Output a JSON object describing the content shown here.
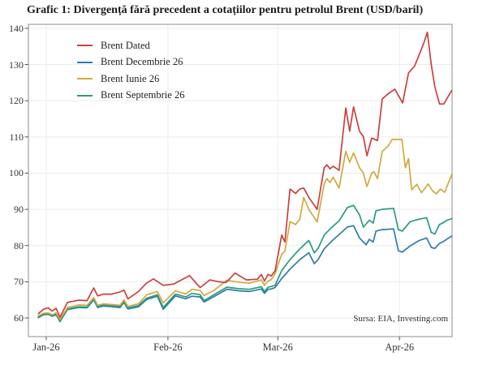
{
  "title": "Grafic 1: Divergență fără precedent a cotațiilor pentru petrolul Brent (USD/baril)",
  "source_note": "Sursa: EIA, Investing.com",
  "colors": {
    "background": "#ffffff",
    "plot_border": "#a8a8a8",
    "gridline": "#ececec",
    "tick": "#555555",
    "text": "#333333",
    "title_text": "#1a1a1a"
  },
  "chart_data": {
    "type": "line",
    "title": "Grafic 1: Divergență fără precedent a cotațiilor pentru petrolul Brent (USD/baril)",
    "xlabel": "",
    "ylabel": "",
    "grid": true,
    "legend_position": "top-left",
    "annotation": "Sursa: EIA, Investing.com",
    "x_axis": {
      "unit": "days since Jan 1 2026",
      "domain_days": [
        -4.55,
        103.4
      ],
      "tick_days": [
        0,
        31,
        59,
        90
      ],
      "tick_labels": [
        "Jan-26",
        "Feb-26",
        "Mar-26",
        "Apr-26"
      ]
    },
    "y_axis": {
      "unit": "USD/baril",
      "domain": [
        54.85,
        141.1
      ],
      "ticks": [
        60,
        70,
        80,
        90,
        100,
        110,
        120,
        130,
        140
      ]
    },
    "draw_order": [
      1,
      3,
      2,
      0
    ],
    "series": [
      {
        "name": "Brent Dated",
        "color": "#c9403f",
        "points": [
          [
            -2,
            61.2
          ],
          [
            -0.7,
            62.4
          ],
          [
            0.5,
            62.8
          ],
          [
            1.5,
            61.9
          ],
          [
            2.5,
            62.7
          ],
          [
            3.5,
            60.2
          ],
          [
            5.4,
            64.3
          ],
          [
            8.3,
            64.9
          ],
          [
            10.4,
            64.8
          ],
          [
            12.1,
            68.3
          ],
          [
            13.1,
            66.1
          ],
          [
            14.6,
            66.6
          ],
          [
            16.7,
            66.6
          ],
          [
            18.8,
            67.2
          ],
          [
            19.8,
            67.7
          ],
          [
            20.8,
            65.3
          ],
          [
            23.5,
            67.3
          ],
          [
            25.5,
            69.6
          ],
          [
            27.3,
            70.8
          ],
          [
            29.8,
            69.0
          ],
          [
            32.5,
            69.4
          ],
          [
            36.5,
            71.7
          ],
          [
            39.2,
            68.4
          ],
          [
            41.7,
            70.5
          ],
          [
            44.0,
            70.0
          ],
          [
            45.8,
            69.8
          ],
          [
            48.1,
            72.4
          ],
          [
            51.0,
            70.5
          ],
          [
            53.8,
            70.7
          ],
          [
            54.8,
            72.0
          ],
          [
            55.6,
            70.2
          ],
          [
            56.5,
            72.0
          ],
          [
            57.3,
            71.6
          ],
          [
            58.3,
            73.0
          ],
          [
            60.0,
            82.9
          ],
          [
            60.8,
            81.0
          ],
          [
            62.1,
            95.6
          ],
          [
            63.5,
            94.4
          ],
          [
            64.6,
            95.6
          ],
          [
            65.6,
            95.9
          ],
          [
            66.9,
            93.3
          ],
          [
            69.0,
            90.0
          ],
          [
            70.8,
            101.5
          ],
          [
            71.5,
            102.3
          ],
          [
            72.3,
            101.2
          ],
          [
            73.1,
            101.9
          ],
          [
            74.6,
            100.8
          ],
          [
            76.3,
            118.0
          ],
          [
            77.3,
            111.6
          ],
          [
            78.3,
            118.3
          ],
          [
            79.8,
            111.6
          ],
          [
            80.8,
            110.1
          ],
          [
            81.7,
            104.8
          ],
          [
            82.9,
            109.7
          ],
          [
            84.4,
            109.0
          ],
          [
            85.6,
            120.5
          ],
          [
            87.1,
            121.9
          ],
          [
            88.8,
            123.2
          ],
          [
            90.8,
            119.4
          ],
          [
            92.3,
            127.7
          ],
          [
            93.8,
            129.5
          ],
          [
            94.8,
            132.1
          ],
          [
            96.3,
            136.3
          ],
          [
            97.1,
            138.9
          ],
          [
            98.1,
            129.9
          ],
          [
            99.0,
            123.9
          ],
          [
            100.2,
            119.1
          ],
          [
            101.3,
            119.1
          ],
          [
            102.3,
            121.0
          ],
          [
            103.3,
            122.8
          ]
        ]
      },
      {
        "name": "Brent Decembrie 26",
        "color": "#2f7ca6",
        "points": [
          [
            -2,
            60.1
          ],
          [
            -0.7,
            60.9
          ],
          [
            0.5,
            61.0
          ],
          [
            1.5,
            60.5
          ],
          [
            2.5,
            60.9
          ],
          [
            3.5,
            59.0
          ],
          [
            5.4,
            62.3
          ],
          [
            8.3,
            62.9
          ],
          [
            10.4,
            62.8
          ],
          [
            12.1,
            65.0
          ],
          [
            13.1,
            62.9
          ],
          [
            14.6,
            63.3
          ],
          [
            16.7,
            63.1
          ],
          [
            18.8,
            62.9
          ],
          [
            19.8,
            64.3
          ],
          [
            20.8,
            62.5
          ],
          [
            23.5,
            63.1
          ],
          [
            25.6,
            65.1
          ],
          [
            28.3,
            66.0
          ],
          [
            29.8,
            62.4
          ],
          [
            32.9,
            66.1
          ],
          [
            35.6,
            65.3
          ],
          [
            37.1,
            66.0
          ],
          [
            39.2,
            65.8
          ],
          [
            40.2,
            64.4
          ],
          [
            42.7,
            65.9
          ],
          [
            46.0,
            67.9
          ],
          [
            49.0,
            67.5
          ],
          [
            51.7,
            67.3
          ],
          [
            54.8,
            68.0
          ],
          [
            55.6,
            66.8
          ],
          [
            56.5,
            67.9
          ],
          [
            57.3,
            68.0
          ],
          [
            58.3,
            68.4
          ],
          [
            60.0,
            70.9
          ],
          [
            62.1,
            73.5
          ],
          [
            64.6,
            76.1
          ],
          [
            66.9,
            78.0
          ],
          [
            68.3,
            75.0
          ],
          [
            69.3,
            76.2
          ],
          [
            70.8,
            79.1
          ],
          [
            72.5,
            81.0
          ],
          [
            74.6,
            83.0
          ],
          [
            76.7,
            85.1
          ],
          [
            78.3,
            85.5
          ],
          [
            79.8,
            82.1
          ],
          [
            81.5,
            80.2
          ],
          [
            82.3,
            81.7
          ],
          [
            83.3,
            81.0
          ],
          [
            84.0,
            84.0
          ],
          [
            85.6,
            84.4
          ],
          [
            88.5,
            84.6
          ],
          [
            89.7,
            78.6
          ],
          [
            90.7,
            78.2
          ],
          [
            92.7,
            79.9
          ],
          [
            95.0,
            81.4
          ],
          [
            96.9,
            82.1
          ],
          [
            98.1,
            79.5
          ],
          [
            99.0,
            79.2
          ],
          [
            100.2,
            80.6
          ],
          [
            101.3,
            81.2
          ],
          [
            102.1,
            81.8
          ],
          [
            103.3,
            82.6
          ]
        ]
      },
      {
        "name": "Brent Iunie 26",
        "color": "#d1a93d",
        "points": [
          [
            -2,
            60.6
          ],
          [
            -0.7,
            61.3
          ],
          [
            0.5,
            61.4
          ],
          [
            1.5,
            60.9
          ],
          [
            2.5,
            61.4
          ],
          [
            3.5,
            59.6
          ],
          [
            5.4,
            62.9
          ],
          [
            8.3,
            63.6
          ],
          [
            10.4,
            63.5
          ],
          [
            12.1,
            65.6
          ],
          [
            13.1,
            63.5
          ],
          [
            14.6,
            63.9
          ],
          [
            16.7,
            63.7
          ],
          [
            18.8,
            63.5
          ],
          [
            19.8,
            65.0
          ],
          [
            20.8,
            63.2
          ],
          [
            23.5,
            63.9
          ],
          [
            25.6,
            66.4
          ],
          [
            28.3,
            67.3
          ],
          [
            29.8,
            64.2
          ],
          [
            32.9,
            67.5
          ],
          [
            35.6,
            66.6
          ],
          [
            37.1,
            67.9
          ],
          [
            39.2,
            67.6
          ],
          [
            40.2,
            66.2
          ],
          [
            42.7,
            67.6
          ],
          [
            46.0,
            70.4
          ],
          [
            49.0,
            69.9
          ],
          [
            51.7,
            69.6
          ],
          [
            54.8,
            70.5
          ],
          [
            55.6,
            69.0
          ],
          [
            56.5,
            70.2
          ],
          [
            57.3,
            70.6
          ],
          [
            58.3,
            72.2
          ],
          [
            60.0,
            77.6
          ],
          [
            60.8,
            78.4
          ],
          [
            62.1,
            86.6
          ],
          [
            63.5,
            85.8
          ],
          [
            64.6,
            87.3
          ],
          [
            65.6,
            93.3
          ],
          [
            66.9,
            90.0
          ],
          [
            69.0,
            86.5
          ],
          [
            70.8,
            97.0
          ],
          [
            71.5,
            98.5
          ],
          [
            72.3,
            97.4
          ],
          [
            73.1,
            98.9
          ],
          [
            74.6,
            95.9
          ],
          [
            76.3,
            106.0
          ],
          [
            77.3,
            103.0
          ],
          [
            78.3,
            105.6
          ],
          [
            79.8,
            101.5
          ],
          [
            80.8,
            100.0
          ],
          [
            81.7,
            96.3
          ],
          [
            82.9,
            100.0
          ],
          [
            83.5,
            100.4
          ],
          [
            84.4,
            98.5
          ],
          [
            85.6,
            106.0
          ],
          [
            87.1,
            107.5
          ],
          [
            88.1,
            109.3
          ],
          [
            90.6,
            109.3
          ],
          [
            91.5,
            101.5
          ],
          [
            92.3,
            104.0
          ],
          [
            93.1,
            95.4
          ],
          [
            94.4,
            96.9
          ],
          [
            95.6,
            94.6
          ],
          [
            97.3,
            97.0
          ],
          [
            98.5,
            95.0
          ],
          [
            99.4,
            94.3
          ],
          [
            100.4,
            95.6
          ],
          [
            101.5,
            94.7
          ],
          [
            102.3,
            96.9
          ],
          [
            103.3,
            99.6
          ]
        ]
      },
      {
        "name": "Brent Septembrie 26",
        "color": "#2a9a82",
        "points": [
          [
            -2,
            60.3
          ],
          [
            -0.7,
            61.1
          ],
          [
            0.5,
            61.2
          ],
          [
            1.5,
            60.7
          ],
          [
            2.5,
            61.1
          ],
          [
            3.5,
            59.2
          ],
          [
            5.4,
            62.5
          ],
          [
            8.3,
            63.1
          ],
          [
            10.4,
            63.0
          ],
          [
            12.1,
            65.3
          ],
          [
            13.1,
            63.2
          ],
          [
            14.6,
            63.6
          ],
          [
            16.7,
            63.4
          ],
          [
            18.8,
            63.2
          ],
          [
            19.8,
            64.6
          ],
          [
            20.8,
            62.8
          ],
          [
            23.5,
            63.4
          ],
          [
            25.6,
            65.5
          ],
          [
            28.3,
            66.4
          ],
          [
            29.8,
            62.9
          ],
          [
            32.9,
            66.6
          ],
          [
            35.6,
            65.8
          ],
          [
            37.1,
            66.8
          ],
          [
            39.2,
            66.4
          ],
          [
            40.2,
            64.8
          ],
          [
            42.7,
            66.4
          ],
          [
            46.0,
            68.5
          ],
          [
            49.0,
            68.1
          ],
          [
            51.7,
            67.9
          ],
          [
            54.8,
            68.6
          ],
          [
            55.6,
            67.3
          ],
          [
            56.5,
            68.5
          ],
          [
            57.3,
            68.7
          ],
          [
            58.3,
            69.0
          ],
          [
            60.0,
            73.1
          ],
          [
            62.1,
            76.1
          ],
          [
            64.6,
            79.1
          ],
          [
            66.9,
            81.4
          ],
          [
            68.3,
            78.0
          ],
          [
            69.3,
            79.3
          ],
          [
            70.8,
            82.9
          ],
          [
            72.5,
            84.8
          ],
          [
            74.6,
            86.8
          ],
          [
            76.7,
            90.5
          ],
          [
            78.3,
            91.1
          ],
          [
            79.8,
            88.5
          ],
          [
            80.8,
            85.1
          ],
          [
            82.3,
            87.0
          ],
          [
            83.3,
            86.2
          ],
          [
            84.0,
            89.6
          ],
          [
            85.6,
            90.0
          ],
          [
            88.5,
            90.3
          ],
          [
            89.7,
            84.4
          ],
          [
            90.7,
            84.0
          ],
          [
            92.7,
            86.6
          ],
          [
            95.0,
            87.3
          ],
          [
            96.9,
            87.7
          ],
          [
            98.1,
            83.6
          ],
          [
            99.0,
            83.2
          ],
          [
            100.2,
            85.8
          ],
          [
            101.3,
            86.4
          ],
          [
            102.1,
            87.0
          ],
          [
            103.3,
            87.4
          ]
        ]
      }
    ]
  }
}
